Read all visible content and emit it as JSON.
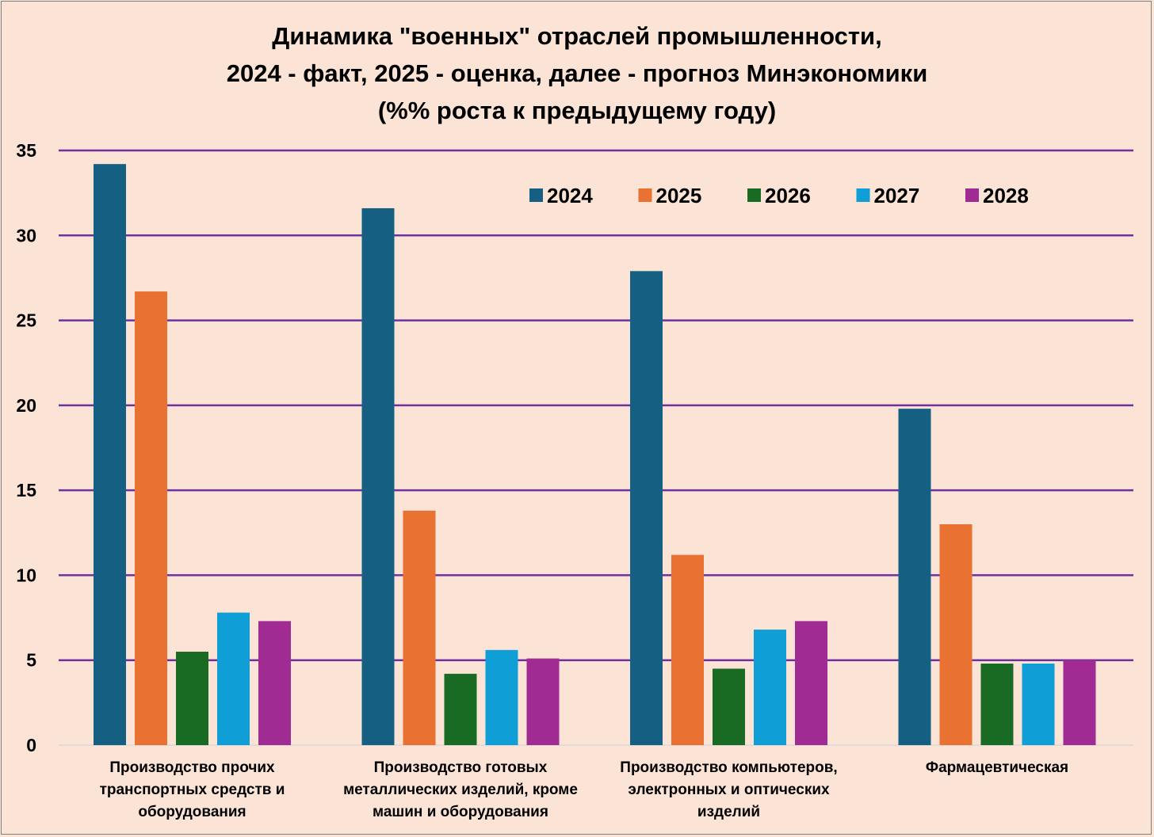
{
  "chart_data": {
    "type": "bar",
    "title_lines": [
      "Динамика \"военных\" отраслей промышленности,",
      "2024 - факт, 2025 - оценка, далее - прогноз Минэкономики",
      "(%% роста к предыдущему году)"
    ],
    "categories": [
      [
        "Производство прочих",
        "транспортных средств и",
        "оборудования"
      ],
      [
        "Производство готовых",
        "металлических изделий, кроме",
        "машин и оборудования"
      ],
      [
        "Производство компьютеров,",
        "электронных и оптических",
        "изделий"
      ],
      [
        "Фармацевтическая"
      ]
    ],
    "series": [
      {
        "name": "2024",
        "color": "#156082",
        "values": [
          34.2,
          31.6,
          27.9,
          19.8
        ]
      },
      {
        "name": "2025",
        "color": "#e97132",
        "values": [
          26.7,
          13.8,
          11.2,
          13.0
        ]
      },
      {
        "name": "2026",
        "color": "#196b24",
        "values": [
          5.5,
          4.2,
          4.5,
          4.8
        ]
      },
      {
        "name": "2027",
        "color": "#0f9ed5",
        "values": [
          7.8,
          5.6,
          6.8,
          4.8
        ]
      },
      {
        "name": "2028",
        "color": "#a02b93",
        "values": [
          7.3,
          5.1,
          7.3,
          5.0
        ]
      }
    ],
    "ylim": [
      0,
      35
    ],
    "yticks": [
      0,
      5,
      10,
      15,
      20,
      25,
      30,
      35
    ],
    "grid": true,
    "gridline_color": "#7030a0",
    "legend_position": "top-right"
  }
}
